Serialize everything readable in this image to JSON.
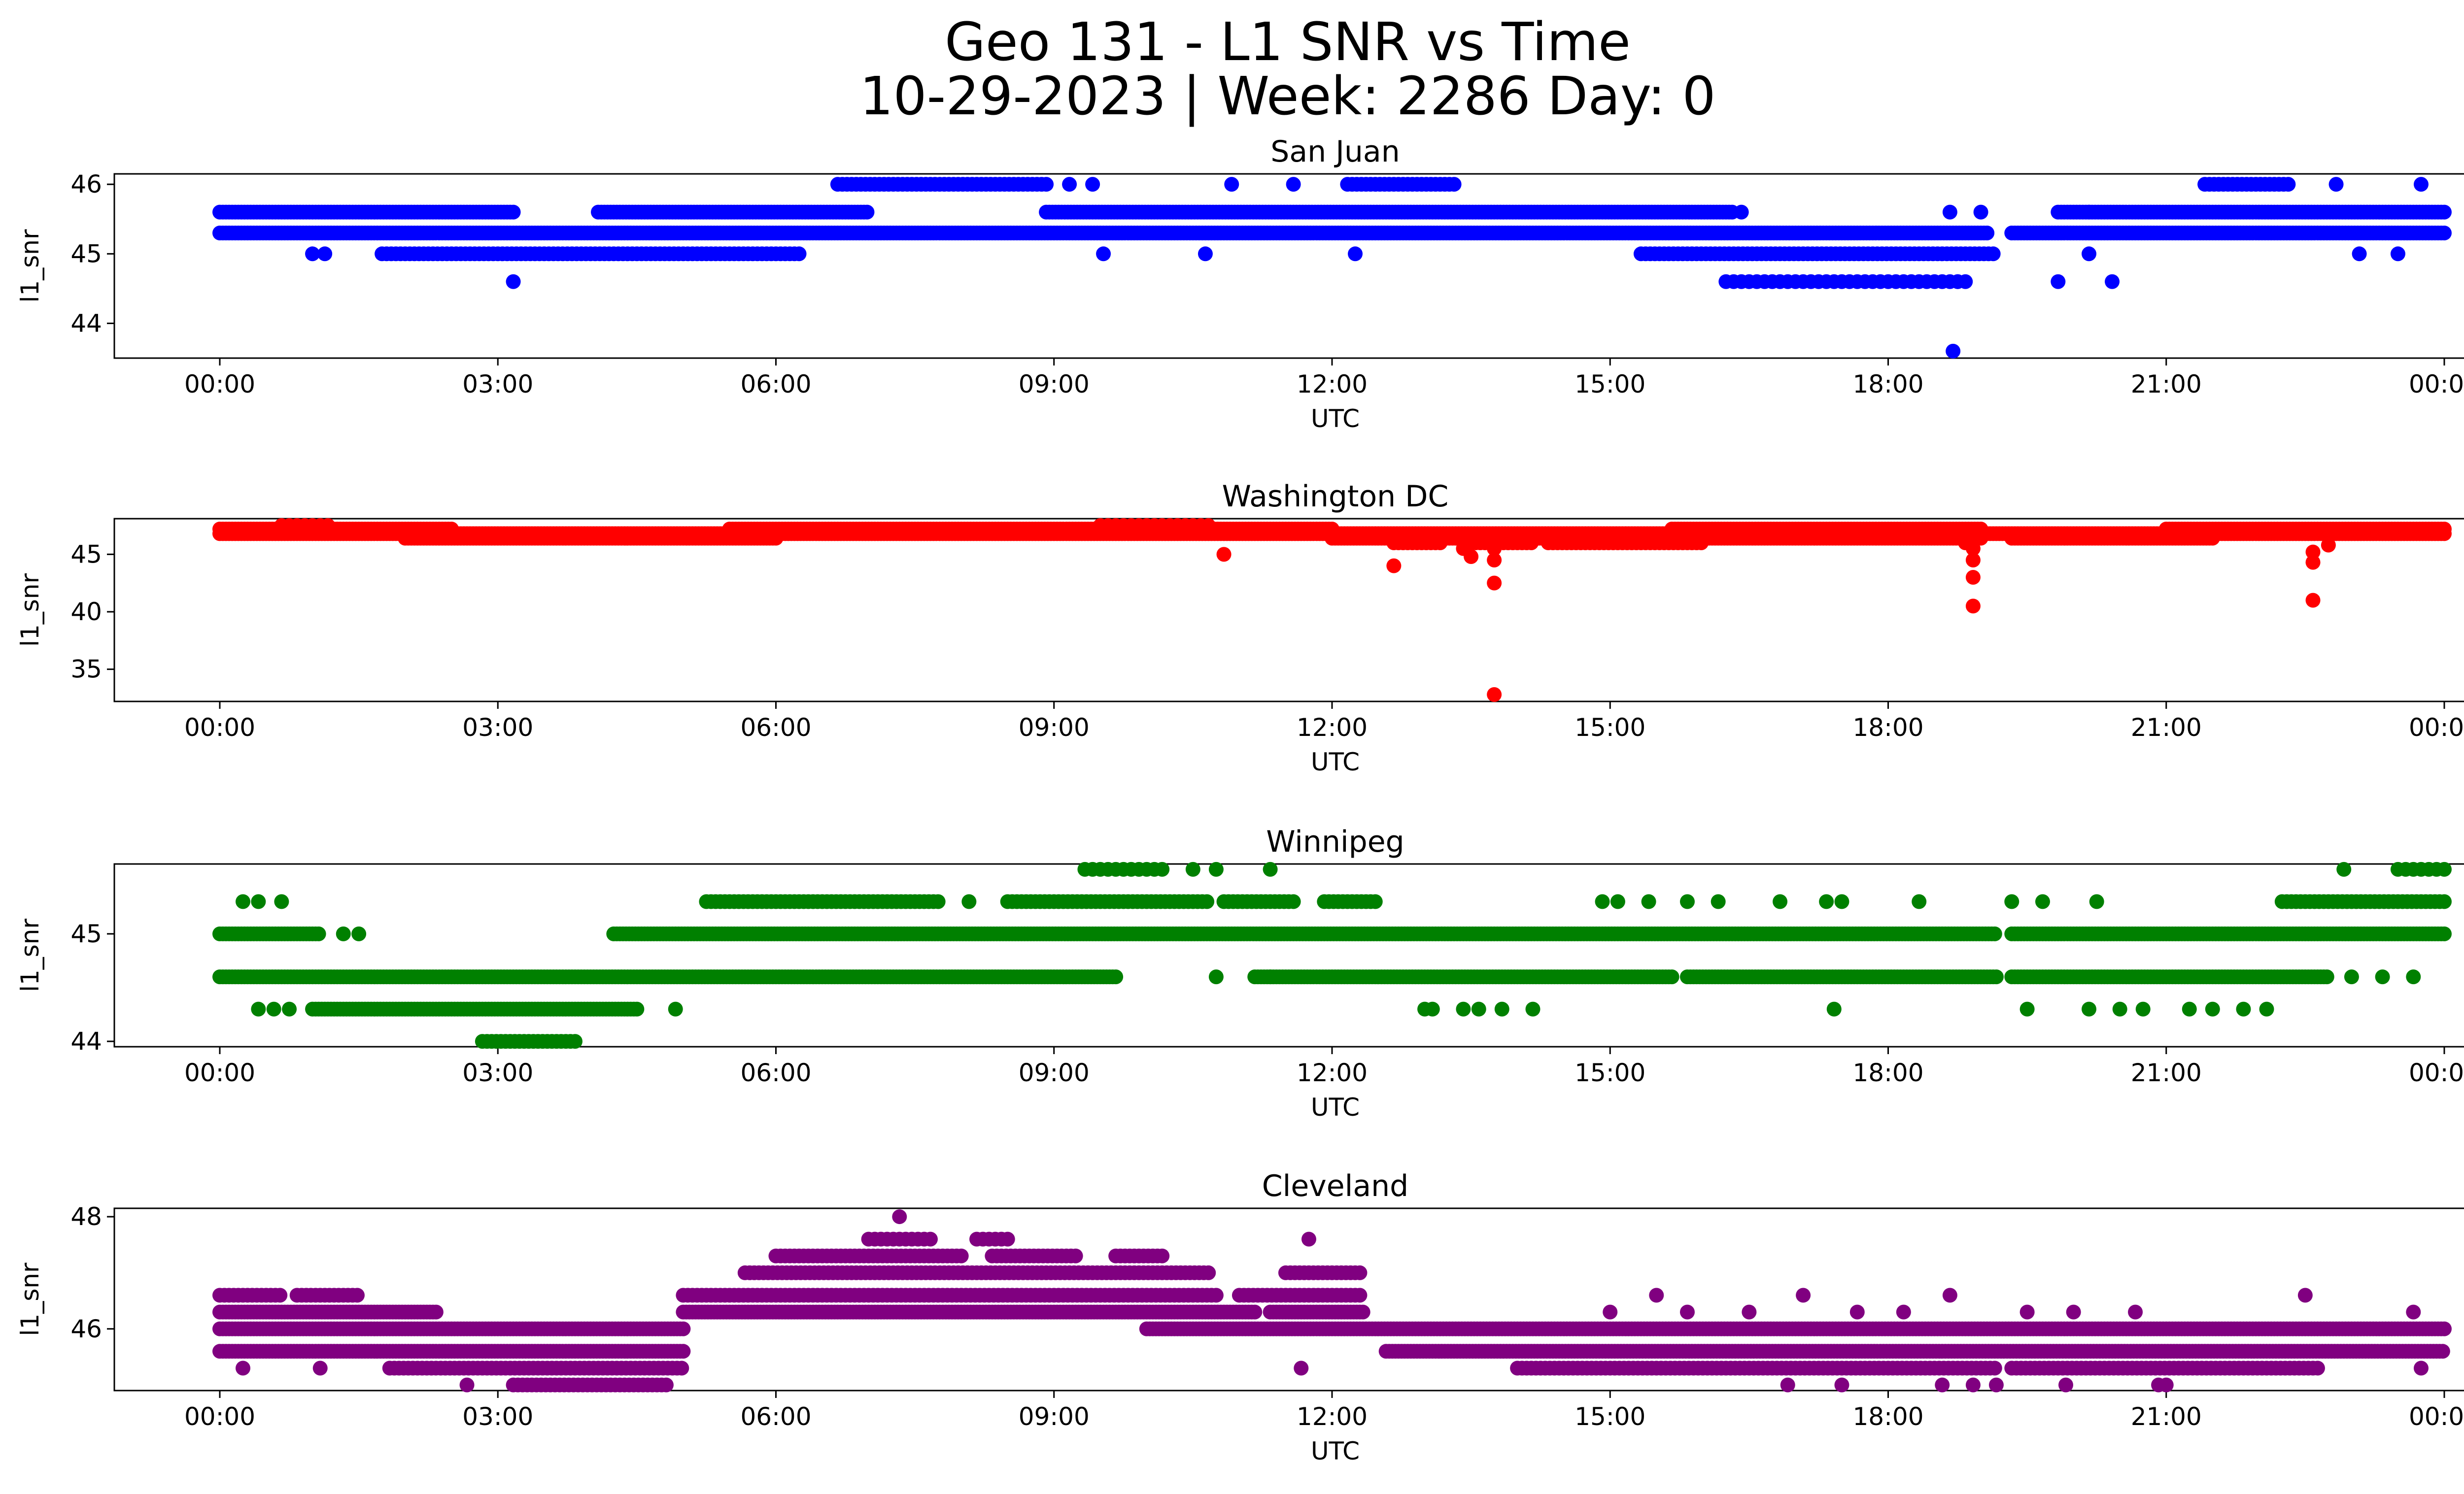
{
  "title_line1": "Geo 131 - L1 SNR vs Time",
  "title_line2": "10-29-2023 | Week: 2286 Day: 0",
  "chart_data": [
    {
      "type": "scatter",
      "title": "San Juan",
      "xlabel": "UTC",
      "ylabel": "l1_snr",
      "color": "#0000ff",
      "xlim": [
        "2023-10-28T23:20",
        "2023-10-30T00:24"
      ],
      "ylim": [
        43.5,
        46.15
      ],
      "yticks": [
        44,
        45,
        46
      ],
      "xticks": [
        "00:00",
        "03:00",
        "06:00",
        "09:00",
        "12:00",
        "15:00",
        "18:00",
        "21:00",
        "00:00"
      ],
      "bands": [
        {
          "y": 45.6,
          "ranges": [
            [
              "00:00",
              "03:10"
            ],
            [
              "04:05",
              "07:00"
            ],
            [
              "08:55",
              "16:20"
            ],
            [
              "19:50",
              "24:00"
            ]
          ],
          "step_min": 2
        },
        {
          "y": 45.3,
          "ranges": [
            [
              "00:00",
              "19:05"
            ],
            [
              "19:20",
              "24:00"
            ]
          ],
          "step_min": 2
        },
        {
          "y": 45.0,
          "ranges": [
            [
              "01:45",
              "06:15"
            ],
            [
              "15:20",
              "19:10"
            ]
          ],
          "step_min": 3
        },
        {
          "y": 46.0,
          "ranges": [
            [
              "06:40",
              "08:55"
            ],
            [
              "12:10",
              "13:20"
            ],
            [
              "21:25",
              "22:20"
            ]
          ],
          "step_min": 3
        },
        {
          "y": 44.6,
          "ranges": [
            [
              "16:15",
              "18:50"
            ]
          ],
          "step_min": 5
        }
      ],
      "points": [
        [
          "01:00",
          45.0
        ],
        [
          "01:08",
          45.0
        ],
        [
          "03:10",
          44.6
        ],
        [
          "09:32",
          45.0
        ],
        [
          "10:38",
          45.0
        ],
        [
          "12:15",
          45.0
        ],
        [
          "09:10",
          46.0
        ],
        [
          "09:25",
          46.0
        ],
        [
          "10:55",
          46.0
        ],
        [
          "11:35",
          46.0
        ],
        [
          "22:50",
          46.0
        ],
        [
          "23:45",
          46.0
        ],
        [
          "18:40",
          45.6
        ],
        [
          "19:00",
          45.6
        ],
        [
          "20:10",
          45.6
        ],
        [
          "16:25",
          45.6
        ],
        [
          "19:50",
          44.6
        ],
        [
          "20:25",
          44.6
        ],
        [
          "23:30",
          45.0
        ],
        [
          "23:05",
          45.0
        ],
        [
          "18:42",
          43.6
        ],
        [
          "18:45",
          44.6
        ],
        [
          "20:10",
          45.0
        ]
      ]
    },
    {
      "type": "scatter",
      "title": "Washington DC",
      "xlabel": "UTC",
      "ylabel": "l1_snr",
      "color": "#ff0000",
      "xlim": [
        "2023-10-28T23:20",
        "2023-10-30T00:24"
      ],
      "ylim": [
        32.2,
        48.1
      ],
      "yticks": [
        35,
        40,
        45
      ],
      "xticks": [
        "00:00",
        "03:00",
        "06:00",
        "09:00",
        "12:00",
        "15:00",
        "18:00",
        "21:00",
        "00:00"
      ],
      "bands": [
        {
          "y": 47.2,
          "ranges": [
            [
              "00:00",
              "02:30"
            ],
            [
              "05:30",
              "12:00"
            ],
            [
              "15:40",
              "19:00"
            ],
            [
              "21:00",
              "24:00"
            ]
          ],
          "step_min": 2
        },
        {
          "y": 46.8,
          "ranges": [
            [
              "00:00",
              "24:00"
            ]
          ],
          "step_min": 2
        },
        {
          "y": 46.4,
          "ranges": [
            [
              "02:00",
              "06:00"
            ],
            [
              "12:00",
              "13:40"
            ],
            [
              "14:00",
              "19:00"
            ],
            [
              "19:20",
              "21:30"
            ]
          ],
          "step_min": 2
        },
        {
          "y": 46.0,
          "ranges": [
            [
              "12:40",
              "13:10"
            ],
            [
              "13:30",
              "14:10"
            ],
            [
              "14:20",
              "16:00"
            ]
          ],
          "step_min": 3
        },
        {
          "y": 47.5,
          "ranges": [
            [
              "00:40",
              "01:10"
            ],
            [
              "09:30",
              "10:40"
            ]
          ],
          "step_min": 5
        }
      ],
      "points": [
        [
          "10:50",
          45.0
        ],
        [
          "12:40",
          44.0
        ],
        [
          "13:30",
          44.8
        ],
        [
          "13:45",
          45.5
        ],
        [
          "13:45",
          44.5
        ],
        [
          "13:45",
          42.5
        ],
        [
          "13:45",
          32.8
        ],
        [
          "18:55",
          45.5
        ],
        [
          "18:55",
          44.5
        ],
        [
          "18:55",
          43.0
        ],
        [
          "18:55",
          40.5
        ],
        [
          "22:35",
          45.2
        ],
        [
          "22:35",
          44.3
        ],
        [
          "22:35",
          41.0
        ],
        [
          "22:45",
          45.8
        ],
        [
          "18:50",
          46.0
        ],
        [
          "13:25",
          45.5
        ]
      ]
    },
    {
      "type": "scatter",
      "title": "Winnipeg",
      "xlabel": "UTC",
      "ylabel": "l1_snr",
      "color": "#008000",
      "xlim": [
        "2023-10-28T23:20",
        "2023-10-30T00:24"
      ],
      "ylim": [
        43.95,
        45.65
      ],
      "yticks": [
        44,
        45
      ],
      "xticks": [
        "00:00",
        "03:00",
        "06:00",
        "09:00",
        "12:00",
        "15:00",
        "18:00",
        "21:00",
        "00:00"
      ],
      "bands": [
        {
          "y": 45.0,
          "ranges": [
            [
              "00:00",
              "01:05"
            ],
            [
              "04:15",
              "19:10"
            ],
            [
              "19:20",
              "24:00"
            ]
          ],
          "step_min": 2
        },
        {
          "y": 44.6,
          "ranges": [
            [
              "00:00",
              "09:40"
            ],
            [
              "11:10",
              "15:40"
            ],
            [
              "15:50",
              "19:10"
            ],
            [
              "19:20",
              "22:45"
            ]
          ],
          "step_min": 2
        },
        {
          "y": 44.3,
          "ranges": [
            [
              "01:00",
              "04:30"
            ]
          ],
          "step_min": 2
        },
        {
          "y": 45.3,
          "ranges": [
            [
              "05:15",
              "07:45"
            ],
            [
              "08:30",
              "10:40"
            ],
            [
              "10:50",
              "11:35"
            ],
            [
              "11:55",
              "12:30"
            ],
            [
              "22:15",
              "24:00"
            ]
          ],
          "step_min": 3
        },
        {
          "y": 44.0,
          "ranges": [
            [
              "02:50",
              "03:50"
            ]
          ],
          "step_min": 3
        },
        {
          "y": 45.6,
          "ranges": [
            [
              "09:20",
              "10:10"
            ],
            [
              "23:30",
              "24:00"
            ]
          ],
          "step_min": 5
        }
      ],
      "points": [
        [
          "00:15",
          45.3
        ],
        [
          "00:25",
          45.3
        ],
        [
          "00:40",
          45.3
        ],
        [
          "00:25",
          44.3
        ],
        [
          "00:35",
          44.3
        ],
        [
          "00:45",
          44.3
        ],
        [
          "01:20",
          45.0
        ],
        [
          "01:30",
          45.0
        ],
        [
          "04:55",
          44.3
        ],
        [
          "08:05",
          45.3
        ],
        [
          "10:30",
          45.6
        ],
        [
          "10:45",
          45.6
        ],
        [
          "11:20",
          45.6
        ],
        [
          "10:45",
          44.6
        ],
        [
          "11:20",
          44.6
        ],
        [
          "13:00",
          44.3
        ],
        [
          "13:05",
          44.3
        ],
        [
          "13:25",
          44.3
        ],
        [
          "13:35",
          44.3
        ],
        [
          "13:50",
          44.3
        ],
        [
          "14:10",
          44.3
        ],
        [
          "14:55",
          45.3
        ],
        [
          "15:05",
          45.3
        ],
        [
          "15:25",
          45.3
        ],
        [
          "15:50",
          45.3
        ],
        [
          "16:10",
          45.3
        ],
        [
          "16:50",
          45.3
        ],
        [
          "17:20",
          45.3
        ],
        [
          "17:30",
          45.3
        ],
        [
          "18:20",
          45.3
        ],
        [
          "17:25",
          44.3
        ],
        [
          "19:20",
          45.3
        ],
        [
          "19:40",
          45.3
        ],
        [
          "20:15",
          45.3
        ],
        [
          "19:30",
          44.3
        ],
        [
          "20:10",
          44.3
        ],
        [
          "20:30",
          44.3
        ],
        [
          "20:45",
          44.3
        ],
        [
          "21:15",
          44.3
        ],
        [
          "21:30",
          44.3
        ],
        [
          "21:50",
          44.3
        ],
        [
          "22:05",
          44.3
        ],
        [
          "23:00",
          44.6
        ],
        [
          "23:20",
          44.6
        ],
        [
          "23:40",
          44.6
        ],
        [
          "22:55",
          45.6
        ]
      ]
    },
    {
      "type": "scatter",
      "title": "Cleveland",
      "xlabel": "UTC",
      "ylabel": "l1_snr",
      "color": "#800080",
      "xlim": [
        "2023-10-28T23:20",
        "2023-10-30T00:24"
      ],
      "ylim": [
        44.9,
        48.15
      ],
      "yticks": [
        46,
        48
      ],
      "xticks": [
        "00:00",
        "03:00",
        "06:00",
        "09:00",
        "12:00",
        "15:00",
        "18:00",
        "21:00",
        "00:00"
      ],
      "bands": [
        {
          "y": 46.3,
          "ranges": [
            [
              "00:00",
              "02:20"
            ],
            [
              "05:00",
              "11:10"
            ],
            [
              "11:20",
              "12:20"
            ]
          ],
          "step_min": 2
        },
        {
          "y": 46.0,
          "ranges": [
            [
              "00:00",
              "05:00"
            ],
            [
              "10:00",
              "24:00"
            ]
          ],
          "step_min": 2
        },
        {
          "y": 45.6,
          "ranges": [
            [
              "00:00",
              "05:00"
            ],
            [
              "12:35",
              "24:00"
            ]
          ],
          "step_min": 2
        },
        {
          "y": 45.3,
          "ranges": [
            [
              "01:50",
              "05:00"
            ],
            [
              "14:00",
              "19:10"
            ],
            [
              "19:20",
              "22:40"
            ]
          ],
          "step_min": 3
        },
        {
          "y": 46.6,
          "ranges": [
            [
              "00:00",
              "00:40"
            ],
            [
              "00:50",
              "01:30"
            ],
            [
              "05:00",
              "10:45"
            ],
            [
              "11:00",
              "12:20"
            ]
          ],
          "step_min": 3
        },
        {
          "y": 45.0,
          "ranges": [
            [
              "03:10",
              "04:50"
            ]
          ],
          "step_min": 3
        },
        {
          "y": 47.0,
          "ranges": [
            [
              "05:40",
              "10:40"
            ],
            [
              "11:30",
              "12:20"
            ]
          ],
          "step_min": 3
        },
        {
          "y": 47.3,
          "ranges": [
            [
              "06:00",
              "08:00"
            ],
            [
              "08:20",
              "09:15"
            ],
            [
              "09:40",
              "10:10"
            ]
          ],
          "step_min": 3
        },
        {
          "y": 47.6,
          "ranges": [
            [
              "07:00",
              "07:40"
            ],
            [
              "08:10",
              "08:30"
            ]
          ],
          "step_min": 4
        }
      ],
      "points": [
        [
          "07:20",
          48.0
        ],
        [
          "11:45",
          47.6
        ],
        [
          "00:15",
          45.3
        ],
        [
          "01:05",
          45.3
        ],
        [
          "11:40",
          45.3
        ],
        [
          "02:40",
          45.0
        ],
        [
          "15:30",
          46.6
        ],
        [
          "17:05",
          46.6
        ],
        [
          "18:40",
          46.6
        ],
        [
          "22:30",
          46.6
        ],
        [
          "23:40",
          46.3
        ],
        [
          "23:45",
          45.3
        ],
        [
          "16:55",
          45.0
        ],
        [
          "17:30",
          45.0
        ],
        [
          "18:35",
          45.0
        ],
        [
          "18:55",
          45.0
        ],
        [
          "19:10",
          45.0
        ],
        [
          "19:55",
          45.0
        ],
        [
          "20:55",
          45.0
        ],
        [
          "21:00",
          45.0
        ],
        [
          "15:00",
          46.3
        ],
        [
          "15:50",
          46.3
        ],
        [
          "16:30",
          46.3
        ],
        [
          "17:40",
          46.3
        ],
        [
          "18:10",
          46.3
        ],
        [
          "19:30",
          46.3
        ],
        [
          "20:00",
          46.3
        ],
        [
          "20:40",
          46.3
        ]
      ]
    }
  ]
}
